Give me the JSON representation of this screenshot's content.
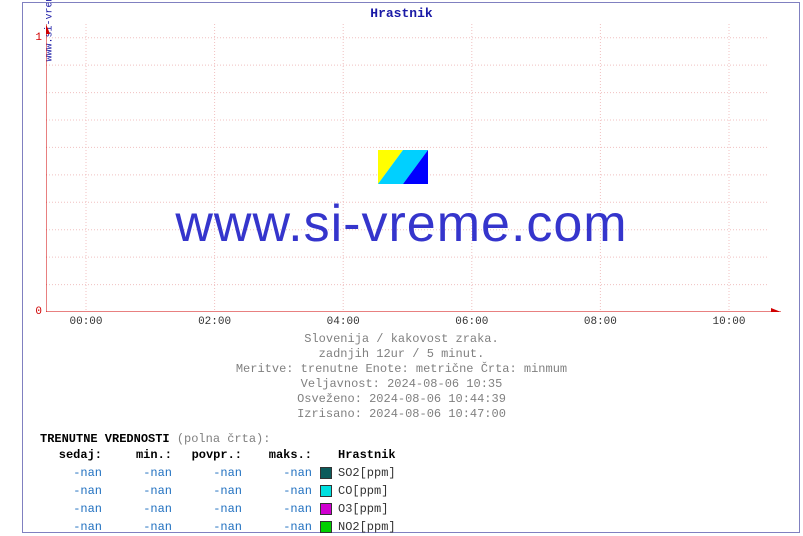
{
  "site_label": "www.si-vreme.com",
  "title": "Hrastnik",
  "title_color": "#1a1aa6",
  "frame_border_color": "#8080c0",
  "watermark_text": "www.si-vreme.com",
  "watermark_color": "#3535cc",
  "watermark_fontsize": 52,
  "watermark_logo_colors": [
    "#ffff00",
    "#00d0ff",
    "#0000ff"
  ],
  "chart": {
    "type": "line",
    "plot_bg": "#ffffff",
    "grid_color": "#f0c0c0",
    "grid_dash": "1,2",
    "axis_color": "#d00000",
    "arrow_color": "#d00000",
    "y_ticks": [
      {
        "v": 0,
        "label": "0"
      },
      {
        "v": 1,
        "label": "1"
      }
    ],
    "ylim": [
      0,
      1.05
    ],
    "y_minor_step": 0.1,
    "x_ticks": [
      "00:00",
      "02:00",
      "04:00",
      "06:00",
      "08:00",
      "10:00"
    ],
    "x_tick_color": "#333333",
    "series": []
  },
  "meta_lines": [
    "Slovenija / kakovost zraka.",
    "zadnjih 12ur / 5 minut.",
    "Meritve: trenutne  Enote: metrične  Črta: minmum",
    "Veljavnost: 2024-08-06 10:35",
    "Osveženo: 2024-08-06 10:44:39",
    "Izrisano: 2024-08-06 10:47:00"
  ],
  "meta_color": "#808080",
  "legend": {
    "title_prefix": "TRENUTNE VREDNOSTI",
    "title_suffix": " (polna črta):",
    "columns": [
      "sedaj:",
      "min.:",
      "povpr.:",
      "maks.:"
    ],
    "station_header": "Hrastnik",
    "value_color": "#2070c0",
    "rows": [
      {
        "values": [
          "-nan",
          "-nan",
          "-nan",
          "-nan"
        ],
        "swatch": "#0b5b5b",
        "name": "SO2[ppm]"
      },
      {
        "values": [
          "-nan",
          "-nan",
          "-nan",
          "-nan"
        ],
        "swatch": "#00e0e0",
        "name": "CO[ppm]"
      },
      {
        "values": [
          "-nan",
          "-nan",
          "-nan",
          "-nan"
        ],
        "swatch": "#d000d0",
        "name": "O3[ppm]"
      },
      {
        "values": [
          "-nan",
          "-nan",
          "-nan",
          "-nan"
        ],
        "swatch": "#00d000",
        "name": "NO2[ppm]"
      }
    ]
  }
}
